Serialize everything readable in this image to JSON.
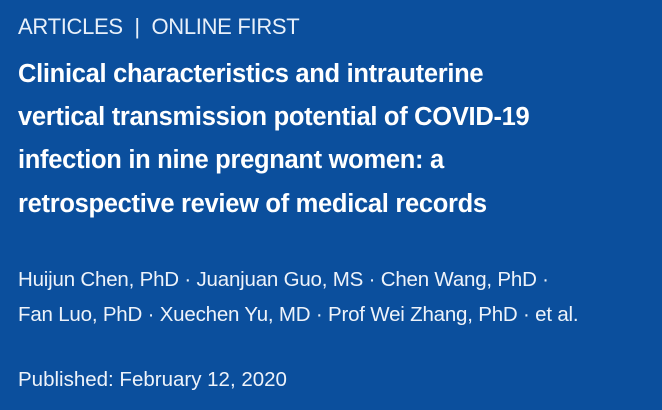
{
  "section_label": "ARTICLES  |  ONLINE FIRST",
  "title_lines": [
    "Clinical characteristics and intrauterine",
    "vertical transmission potential of COVID-19",
    "infection in nine pregnant women: a",
    "retrospective review of medical records"
  ],
  "author_lines": [
    "Huijun Chen, PhD · Juanjuan Guo, MS · Chen Wang, PhD ·",
    "Fan Luo, PhD · Xuechen Yu, MD · Prof Wei Zhang, PhD · et al."
  ],
  "published": "Published: February 12, 2020",
  "colors": {
    "background": "#0b4f9d",
    "text": "#ffffff"
  }
}
